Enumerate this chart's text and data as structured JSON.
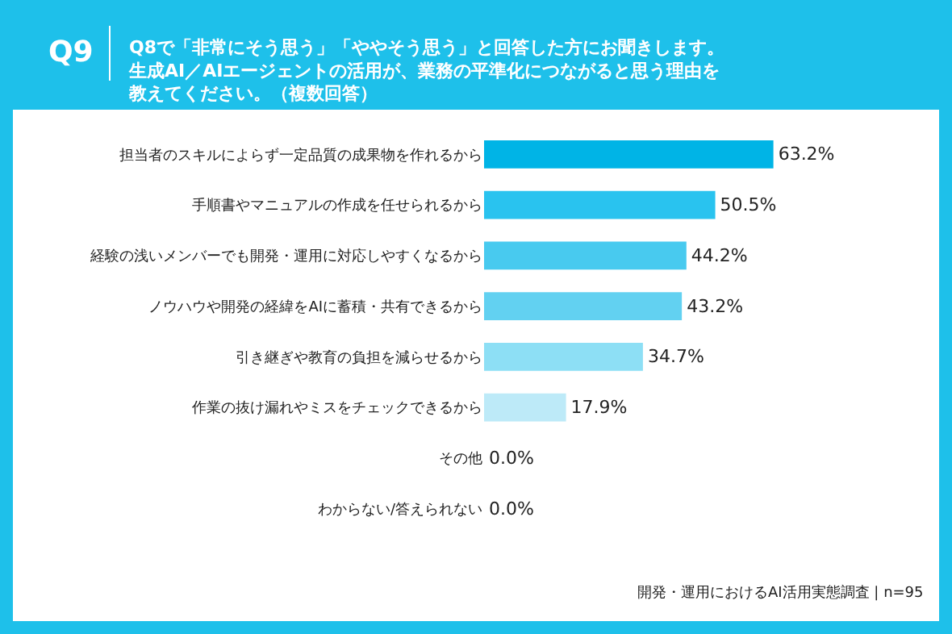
{
  "chart_data": {
    "type": "bar",
    "orientation": "horizontal",
    "title": "Q8で「非常にそう思う」「ややそう思う」と回答した方にお聞きします。生成AI／AIエージェントの活用が、業務の平準化につながると思う理由を教えてください。（複数回答）",
    "categories": [
      "担当者のスキルによらず一定品質の成果物を作れるから",
      "手順書やマニュアルの作成を任せられるから",
      "経験の浅いメンバーでも開発・運用に対応しやすくなるから",
      "ノウハウや開発の経緯をAIに蓄積・共有できるから",
      "引き継ぎや教育の負担を減らせるから",
      "作業の抜け漏れやミスをチェックできるから",
      "その他",
      "わからない/答えられない"
    ],
    "values": [
      63.2,
      50.5,
      44.2,
      43.2,
      34.7,
      17.9,
      0.0,
      0.0
    ],
    "value_labels": [
      "63.2%",
      "50.5%",
      "44.2%",
      "43.2%",
      "34.7%",
      "17.9%",
      "0.0%",
      "0.0%"
    ],
    "colors": [
      "#00b4e6",
      "#29c3ef",
      "#48caef",
      "#62d1f1",
      "#8ddff5",
      "#bdeaf8",
      "#d6f3fb",
      "#d6f3fb"
    ],
    "annotations": [
      "Q9",
      "開発・運用におけるAI活用実態調査 | n=95"
    ]
  }
}
